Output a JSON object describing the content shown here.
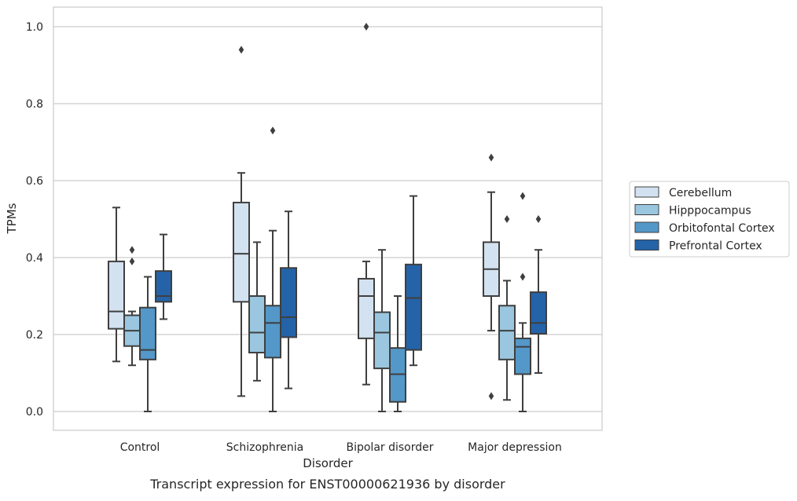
{
  "chart_data": {
    "type": "box",
    "title": "",
    "caption": "Transcript expression for ENST00000621936 by disorder",
    "xlabel": "Disorder",
    "ylabel": "TPMs",
    "ylim": [
      -0.05,
      1.05
    ],
    "yticks": [
      0.0,
      0.2,
      0.4,
      0.6,
      0.8,
      1.0
    ],
    "ytick_labels": [
      "0.0",
      "0.2",
      "0.4",
      "0.6",
      "0.8",
      "1.0"
    ],
    "grid": "horizontal",
    "legend_position": "right",
    "categories": [
      "Control",
      "Schizophrenia",
      "Bipolar disorder",
      "Major depression"
    ],
    "series": [
      {
        "name": "Cerebellum",
        "color": "#d3e2f1",
        "boxes": [
          {
            "whislo": 0.13,
            "q1": 0.215,
            "med": 0.26,
            "q3": 0.39,
            "whishi": 0.53,
            "fliers": []
          },
          {
            "whislo": 0.04,
            "q1": 0.285,
            "med": 0.41,
            "q3": 0.543,
            "whishi": 0.62,
            "fliers": [
              0.94
            ]
          },
          {
            "whislo": 0.07,
            "q1": 0.19,
            "med": 0.3,
            "q3": 0.345,
            "whishi": 0.39,
            "fliers": [
              1.0
            ]
          },
          {
            "whislo": 0.21,
            "q1": 0.3,
            "med": 0.37,
            "q3": 0.44,
            "whishi": 0.57,
            "fliers": [
              0.66,
              0.04
            ]
          }
        ]
      },
      {
        "name": "Hipppocampus",
        "color": "#9ac7df",
        "boxes": [
          {
            "whislo": 0.12,
            "q1": 0.17,
            "med": 0.21,
            "q3": 0.25,
            "whishi": 0.26,
            "fliers": [
              0.42,
              0.39
            ]
          },
          {
            "whislo": 0.08,
            "q1": 0.153,
            "med": 0.205,
            "q3": 0.3,
            "whishi": 0.44,
            "fliers": []
          },
          {
            "whislo": 0.0,
            "q1": 0.112,
            "med": 0.205,
            "q3": 0.258,
            "whishi": 0.42,
            "fliers": []
          },
          {
            "whislo": 0.03,
            "q1": 0.135,
            "med": 0.21,
            "q3": 0.275,
            "whishi": 0.34,
            "fliers": [
              0.5
            ]
          }
        ]
      },
      {
        "name": "Orbitofontal Cortex",
        "color": "#5398c9",
        "boxes": [
          {
            "whislo": 0.0,
            "q1": 0.135,
            "med": 0.16,
            "q3": 0.27,
            "whishi": 0.35,
            "fliers": []
          },
          {
            "whislo": 0.0,
            "q1": 0.14,
            "med": 0.23,
            "q3": 0.275,
            "whishi": 0.47,
            "fliers": [
              0.73
            ]
          },
          {
            "whislo": 0.0,
            "q1": 0.025,
            "med": 0.097,
            "q3": 0.165,
            "whishi": 0.3,
            "fliers": []
          },
          {
            "whislo": 0.0,
            "q1": 0.097,
            "med": 0.168,
            "q3": 0.19,
            "whishi": 0.23,
            "fliers": [
              0.56,
              0.35
            ]
          }
        ]
      },
      {
        "name": "Prefrontal Cortex",
        "color": "#2463a8",
        "boxes": [
          {
            "whislo": 0.24,
            "q1": 0.285,
            "med": 0.3,
            "q3": 0.365,
            "whishi": 0.46,
            "fliers": []
          },
          {
            "whislo": 0.06,
            "q1": 0.193,
            "med": 0.245,
            "q3": 0.373,
            "whishi": 0.52,
            "fliers": []
          },
          {
            "whislo": 0.12,
            "q1": 0.16,
            "med": 0.295,
            "q3": 0.382,
            "whishi": 0.56,
            "fliers": []
          },
          {
            "whislo": 0.1,
            "q1": 0.202,
            "med": 0.23,
            "q3": 0.31,
            "whishi": 0.42,
            "fliers": [
              0.5
            ]
          }
        ]
      }
    ]
  }
}
